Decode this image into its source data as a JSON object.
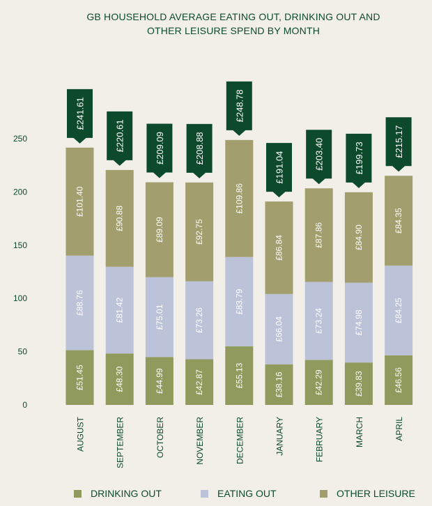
{
  "colors": {
    "drinking": "#8f9a5c",
    "eating": "#bcc3d8",
    "other": "#a29e6e",
    "callout": "#0d4a2b",
    "text": "#0d4a2b",
    "background": "#f1efe7"
  },
  "chart_data": {
    "type": "bar",
    "stacked": true,
    "title": "GB HOUSEHOLD AVERAGE EATING OUT, DRINKING OUT AND OTHER LEISURE SPEND BY MONTH",
    "title_lines": [
      "GB HOUSEHOLD AVERAGE EATING OUT, DRINKING OUT AND",
      "OTHER LEISURE SPEND BY MONTH"
    ],
    "xlabel": "",
    "ylabel": "",
    "ylim": [
      0,
      250
    ],
    "yticks": [
      0,
      50,
      100,
      150,
      200,
      250
    ],
    "grid": false,
    "legend_position": "bottom",
    "categories": [
      "AUGUST",
      "SEPTEMBER",
      "OCTOBER",
      "NOVEMBER",
      "DECEMBER",
      "JANUARY",
      "FEBRUARY",
      "MARCH",
      "APRIL"
    ],
    "series": [
      {
        "name": "DRINKING OUT",
        "values": [
          51.45,
          48.3,
          44.99,
          42.87,
          55.13,
          38.16,
          42.29,
          39.83,
          46.56
        ],
        "labels": [
          "£51.45",
          "£48.30",
          "£44.99",
          "£42.87",
          "£55.13",
          "£38.16",
          "£42.29",
          "£39.83",
          "£46.56"
        ]
      },
      {
        "name": "EATING OUT",
        "values": [
          88.76,
          81.42,
          75.01,
          73.26,
          83.79,
          66.04,
          73.24,
          74.98,
          84.25
        ],
        "labels": [
          "£88.76",
          "£81.42",
          "£75.01",
          "£73.26",
          "£83.79",
          "£66.04",
          "£73.24",
          "£74.98",
          "£84.25"
        ]
      },
      {
        "name": "OTHER LEISURE",
        "values": [
          101.4,
          90.88,
          89.09,
          92.75,
          109.86,
          86.84,
          87.86,
          84.9,
          84.35
        ],
        "labels": [
          "£101.40",
          "£90.88",
          "£89.09",
          "£92.75",
          "£109.86",
          "£86.84",
          "£87.86",
          "£84.90",
          "£84.35"
        ]
      }
    ],
    "totals": [
      241.61,
      220.61,
      209.09,
      208.88,
      248.78,
      191.04,
      203.4,
      199.73,
      215.17
    ],
    "total_labels": [
      "£241.61",
      "£220.61",
      "£209.09",
      "£208.88",
      "£248.78",
      "£191.04",
      "£203.40",
      "£199.73",
      "£215.17"
    ]
  }
}
